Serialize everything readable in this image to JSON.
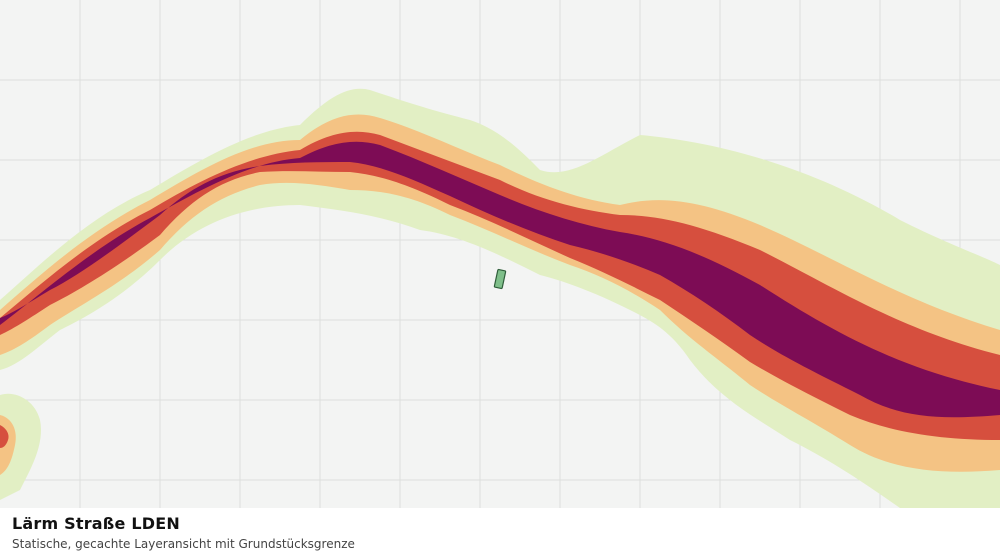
{
  "caption": {
    "title": "Lärm Straße LDEN",
    "subtitle": "Statische, gecachte Layeransicht mit Grundstücksgrenze"
  },
  "map": {
    "background_color": "#f3f4f3",
    "grid_color": "#dcdedc",
    "noise_band_colors": {
      "outer": "#e2efc4",
      "light": "#f4c384",
      "medium": "#d64f3e",
      "core": "#7d0c55"
    },
    "parcel_color": "#7fbf8a",
    "parcel_border_color": "#2f5e3a"
  }
}
